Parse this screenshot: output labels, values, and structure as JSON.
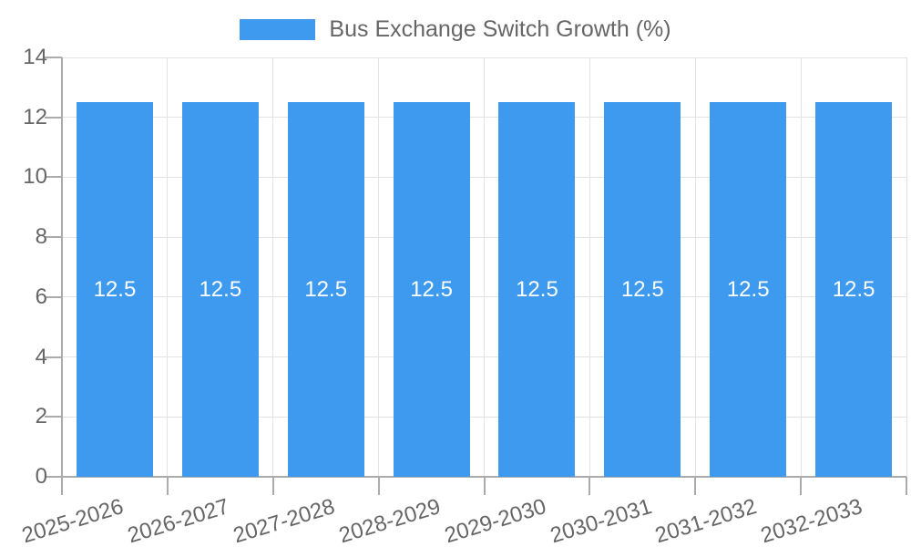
{
  "chart_data": {
    "type": "bar",
    "title": "",
    "categories": [
      "2025-2026",
      "2026-2027",
      "2027-2028",
      "2028-2029",
      "2029-2030",
      "2030-2031",
      "2031-2032",
      "2032-2033"
    ],
    "series": [
      {
        "name": "Bus Exchange Switch Growth (%)",
        "values": [
          12.5,
          12.5,
          12.5,
          12.5,
          12.5,
          12.5,
          12.5,
          12.5
        ]
      }
    ],
    "bar_value_labels": [
      "12.5",
      "12.5",
      "12.5",
      "12.5",
      "12.5",
      "12.5",
      "12.5",
      "12.5"
    ],
    "ylim": [
      0,
      14
    ],
    "yticks": [
      0,
      2,
      4,
      6,
      8,
      10,
      12,
      14
    ],
    "grid": true,
    "legend_position": "top-center",
    "colors": {
      "bar": "#3D9AEE",
      "grid": "#E3E3E3",
      "axis": "#ABABAB",
      "tick": "#ABABAB",
      "text": "#666666",
      "bar_label": "#FFFFFF",
      "background": "#FFFFFF"
    }
  }
}
